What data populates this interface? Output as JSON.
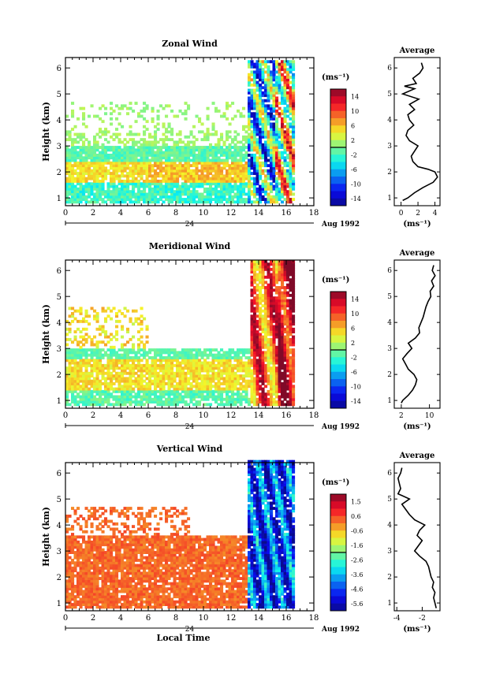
{
  "chart_data": [
    {
      "type": "heatmap",
      "title": "Zonal Wind",
      "xlabel": "",
      "ylabel": "Height (km)",
      "xlim": [
        0,
        18
      ],
      "ylim": [
        0.7,
        6.4
      ],
      "x_ticks": [
        "0",
        "2",
        "4",
        "6",
        "8",
        "10",
        "12",
        "14",
        "16",
        "18"
      ],
      "y_ticks": [
        "1",
        "2",
        "3",
        "4",
        "5",
        "6"
      ],
      "date_marker": "24",
      "date_label": "Aug 1992",
      "colorbar": {
        "unit": "(ms⁻¹)",
        "labels": [
          "14",
          "10",
          "6",
          "2",
          "-2",
          "-6",
          "-10",
          "-14"
        ],
        "range": [
          -14,
          14
        ]
      },
      "data_end_hour": 16.4,
      "average_profile": {
        "title": "Average",
        "xlabel": "(ms⁻¹)",
        "x_ticks": [
          "0",
          "2",
          "4"
        ],
        "xlim": [
          -0.8,
          4.6
        ],
        "ylim": [
          0.7,
          6.4
        ],
        "y": [
          0.9,
          1.0,
          1.2,
          1.4,
          1.6,
          1.8,
          2.0,
          2.1,
          2.2,
          2.4,
          2.6,
          2.8,
          3.0,
          3.2,
          3.4,
          3.6,
          3.8,
          4.0,
          4.2,
          4.4,
          4.6,
          4.8,
          5.0,
          5.2,
          5.3,
          5.4,
          5.6,
          5.8,
          6.0,
          6.2
        ],
        "x": [
          0.2,
          0.8,
          1.6,
          2.6,
          3.8,
          4.3,
          4.0,
          3.2,
          2.0,
          1.4,
          1.2,
          1.6,
          2.0,
          1.0,
          0.6,
          0.8,
          1.5,
          1.0,
          0.8,
          1.6,
          1.0,
          2.1,
          0.2,
          1.6,
          0.4,
          1.8,
          1.4,
          2.2,
          2.6,
          2.4
        ]
      },
      "contour_levels": [
        -2,
        2
      ]
    },
    {
      "type": "heatmap",
      "title": "Meridional Wind",
      "xlabel": "",
      "ylabel": "Height (km)",
      "xlim": [
        0,
        18
      ],
      "ylim": [
        0.7,
        6.4
      ],
      "x_ticks": [
        "0",
        "2",
        "4",
        "6",
        "8",
        "10",
        "12",
        "14",
        "16",
        "18"
      ],
      "y_ticks": [
        "1",
        "2",
        "3",
        "4",
        "5",
        "6"
      ],
      "date_marker": "24",
      "date_label": "Aug 1992",
      "colorbar": {
        "unit": "(ms⁻¹)",
        "labels": [
          "14",
          "10",
          "6",
          "2",
          "-2",
          "-6",
          "-10",
          "-14"
        ],
        "range": [
          -14,
          14
        ]
      },
      "data_end_hour": 16.4,
      "average_profile": {
        "title": "Average",
        "xlabel": "(ms⁻¹)",
        "x_ticks": [
          "2",
          "10"
        ],
        "xlim": [
          0,
          13
        ],
        "y": [
          0.9,
          1.0,
          1.2,
          1.4,
          1.6,
          1.8,
          2.0,
          2.2,
          2.4,
          2.6,
          2.8,
          3.0,
          3.2,
          3.4,
          3.6,
          3.8,
          4.0,
          4.2,
          4.4,
          4.6,
          4.8,
          5.0,
          5.2,
          5.4,
          5.6,
          5.8,
          6.0,
          6.2
        ],
        "x": [
          2.0,
          2.4,
          4.0,
          5.2,
          6.0,
          6.4,
          5.6,
          4.0,
          3.2,
          2.4,
          3.6,
          5.0,
          4.0,
          6.0,
          7.2,
          7.0,
          7.6,
          8.2,
          8.6,
          9.0,
          9.6,
          10.4,
          10.2,
          11.2,
          10.6,
          11.6,
          10.8,
          11.2
        ]
      },
      "contour_levels": [
        -2,
        2
      ]
    },
    {
      "type": "heatmap",
      "title": "Vertical Wind",
      "xlabel": "Local Time",
      "ylabel": "Height (km)",
      "xlim": [
        0,
        18
      ],
      "ylim": [
        0.7,
        6.4
      ],
      "x_ticks": [
        "0",
        "2",
        "4",
        "6",
        "8",
        "10",
        "12",
        "14",
        "16",
        "18"
      ],
      "y_ticks": [
        "1",
        "2",
        "3",
        "4",
        "5",
        "6"
      ],
      "date_marker": "24",
      "date_label": "Aug 1992",
      "colorbar": {
        "unit": "(ms⁻¹)",
        "labels": [
          "1.5",
          "0.6",
          "-0.6",
          "-1.6",
          "-2.6",
          "-3.6",
          "-4.6",
          "-5.6"
        ],
        "range": [
          -6.0,
          2.0
        ]
      },
      "data_end_hour": 16.4,
      "average_profile": {
        "title": "Average",
        "xlabel": "(ms⁻¹)",
        "x_ticks": [
          "-4",
          "-2"
        ],
        "xlim": [
          -4.2,
          -0.6
        ],
        "y": [
          0.8,
          1.0,
          1.2,
          1.4,
          1.6,
          1.8,
          2.0,
          2.2,
          2.4,
          2.6,
          2.8,
          3.0,
          3.2,
          3.4,
          3.6,
          3.8,
          4.0,
          4.2,
          4.4,
          4.6,
          4.8,
          5.0,
          5.2,
          5.4,
          5.6,
          5.8,
          6.0,
          6.2
        ],
        "x": [
          -0.9,
          -1.0,
          -1.1,
          -1.0,
          -1.2,
          -1.1,
          -1.3,
          -1.4,
          -1.5,
          -1.7,
          -2.2,
          -2.6,
          -2.3,
          -2.0,
          -2.4,
          -2.2,
          -1.8,
          -2.6,
          -3.0,
          -3.3,
          -3.6,
          -3.0,
          -3.9,
          -3.7,
          -3.8,
          -3.9,
          -3.7,
          -3.6
        ]
      },
      "contour_levels": []
    }
  ]
}
